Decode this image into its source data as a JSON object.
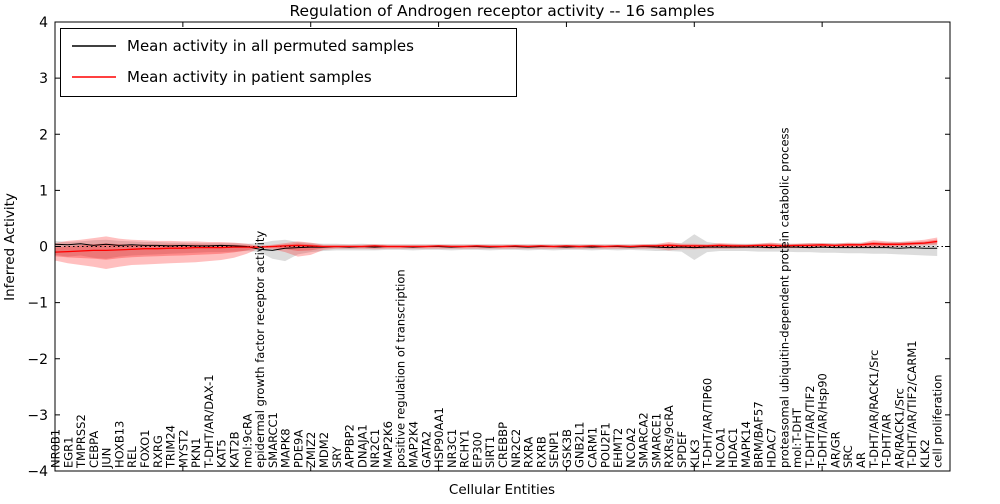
{
  "title": "Regulation of Androgen receptor activity -- 16 samples",
  "axes": {
    "xlabel": "Cellular Entities",
    "ylabel": "Inferred Activity",
    "xlim": [
      0,
      70
    ],
    "ylim": [
      -4,
      4
    ],
    "y_ticks": [
      {
        "label": "4",
        "value": 4
      },
      {
        "label": "3",
        "value": 3
      },
      {
        "label": "2",
        "value": 2
      },
      {
        "label": "1",
        "value": 1
      },
      {
        "label": "0",
        "value": 0
      },
      {
        "label": "−1",
        "value": -1
      },
      {
        "label": "−2",
        "value": -2
      },
      {
        "label": "−3",
        "value": -3
      },
      {
        "label": "−4",
        "value": -4
      }
    ],
    "x_tick_step": 10,
    "grid": false
  },
  "legend": {
    "position": "upper-left",
    "entries": [
      {
        "label": "Mean activity in all permuted samples",
        "color": "#000000"
      },
      {
        "label": "Mean activity in patient samples",
        "color": "#ff0000"
      }
    ]
  },
  "colors": {
    "permuted_line": "#000000",
    "patient_line": "#ff0000",
    "permuted_band": "#808080",
    "patient_band": "#ff0000",
    "zero_line": "#000000",
    "frame": "#000000",
    "background": "#ffffff"
  },
  "chart_data": {
    "type": "line",
    "title": "Regulation of Androgen receptor activity -- 16 samples",
    "xlabel": "Cellular Entities",
    "ylabel": "Inferred Activity",
    "ylim": [
      -4,
      4
    ],
    "xlim": [
      0,
      70
    ],
    "legend_position": "upper left",
    "categories": [
      "NR0B1",
      "EGR1",
      "TMPRSS2",
      "CEBPA",
      "JUN",
      "HOXB13",
      "REL",
      "FOXO1",
      "RXRG",
      "TRIM24",
      "MYST2",
      "PKN1",
      "T-DHT/AR/DAX-1",
      "KAT5",
      "KAT2B",
      "mol:9cRA",
      "epidermal growth factor receptor activity",
      "SMARCC1",
      "MAPK8",
      "PDE9A",
      "ZMIZ2",
      "MDM2",
      "SRY",
      "APPBP2",
      "DNAJA1",
      "NR2C1",
      "MAP2K6",
      "positive regulation of transcription",
      "MAP2K4",
      "GATA2",
      "HSP90AA1",
      "NR3C1",
      "RCHY1",
      "EP300",
      "SIRT1",
      "CREBBP",
      "NR2C2",
      "RXRA",
      "RXRB",
      "SENP1",
      "GSK3B",
      "GNB2L1",
      "CARM1",
      "POU2F1",
      "EHMT2",
      "NCOA2",
      "SMARCA2",
      "SMARCE1",
      "RXRs/9cRA",
      "SPDEF",
      "KLK3",
      "T-DHT/AR/TIP60",
      "NCOA1",
      "HDAC1",
      "MAPK14",
      "BRM/BAF57",
      "HDAC7",
      "proteasomal ubiquitin-dependent protein catabolic process",
      "mol:T-DHT",
      "T-DHT/AR/TIF2",
      "T-DHT/AR/Hsp90",
      "AR/GR",
      "SRC",
      "AR",
      "T-DHT/AR/RACK1/Src",
      "T-DHT/AR",
      "AR/RACK1/Src",
      "T-DHT/AR/TIF2/CARM1",
      "KLK2",
      "cell proliferation"
    ],
    "series": [
      {
        "name": "Mean activity in all permuted samples",
        "color": "#000000",
        "values": [
          0.04,
          0.03,
          0.05,
          0.02,
          0.04,
          0.02,
          0.03,
          0.02,
          0.02,
          0.01,
          0.02,
          0.01,
          0.01,
          0.02,
          0.01,
          0.0,
          -0.05,
          -0.07,
          -0.03,
          -0.02,
          -0.01,
          -0.01,
          0.0,
          -0.01,
          0.0,
          -0.01,
          0.0,
          0.0,
          -0.01,
          0.0,
          0.0,
          -0.01,
          0.0,
          0.0,
          -0.01,
          0.0,
          0.0,
          -0.01,
          0.0,
          0.0,
          -0.01,
          0.0,
          -0.01,
          0.0,
          0.0,
          -0.01,
          0.0,
          -0.01,
          -0.02,
          -0.01,
          -0.02,
          -0.01,
          -0.01,
          -0.01,
          -0.01,
          -0.01,
          -0.02,
          -0.01,
          -0.01,
          -0.02,
          -0.01,
          -0.02,
          -0.02,
          -0.02,
          -0.02,
          -0.02,
          -0.03,
          -0.02,
          -0.03,
          -0.03
        ]
      },
      {
        "name": "Mean activity in patient samples",
        "color": "#ff0000",
        "values": [
          -0.1,
          -0.09,
          -0.08,
          -0.07,
          -0.07,
          -0.06,
          -0.05,
          -0.04,
          -0.04,
          -0.03,
          -0.03,
          -0.02,
          -0.02,
          -0.02,
          -0.01,
          -0.01,
          -0.01,
          0.0,
          0.01,
          0.02,
          0.01,
          0.0,
          0.0,
          0.0,
          0.0,
          0.01,
          0.0,
          0.0,
          0.0,
          0.0,
          0.01,
          0.0,
          0.0,
          0.01,
          0.0,
          0.0,
          0.01,
          0.0,
          0.01,
          0.0,
          0.01,
          0.0,
          0.01,
          0.0,
          0.01,
          0.0,
          0.01,
          0.01,
          0.02,
          0.01,
          0.01,
          0.01,
          0.02,
          0.01,
          0.01,
          0.02,
          0.02,
          0.01,
          0.02,
          0.02,
          0.03,
          0.02,
          0.03,
          0.03,
          0.05,
          0.04,
          0.04,
          0.05,
          0.06,
          0.09
        ]
      }
    ],
    "bands": {
      "permuted_hi": [
        0.1,
        0.08,
        0.09,
        0.11,
        0.12,
        0.1,
        0.09,
        0.08,
        0.08,
        0.07,
        0.07,
        0.06,
        0.06,
        0.06,
        0.06,
        0.05,
        0.06,
        0.1,
        0.12,
        0.08,
        0.06,
        0.05,
        0.05,
        0.04,
        0.05,
        0.04,
        0.04,
        0.04,
        0.04,
        0.04,
        0.04,
        0.04,
        0.04,
        0.04,
        0.04,
        0.04,
        0.04,
        0.04,
        0.04,
        0.04,
        0.04,
        0.04,
        0.04,
        0.04,
        0.04,
        0.04,
        0.04,
        0.05,
        0.05,
        0.06,
        0.22,
        0.08,
        0.05,
        0.05,
        0.05,
        0.05,
        0.06,
        0.05,
        0.05,
        0.06,
        0.06,
        0.06,
        0.06,
        0.07,
        0.07,
        0.07,
        0.08,
        0.08,
        0.08,
        0.08
      ],
      "permuted_lo": [
        -0.15,
        -0.18,
        -0.16,
        -0.2,
        -0.22,
        -0.18,
        -0.16,
        -0.15,
        -0.14,
        -0.13,
        -0.12,
        -0.11,
        -0.1,
        -0.1,
        -0.09,
        -0.08,
        -0.1,
        -0.22,
        -0.26,
        -0.14,
        -0.1,
        -0.08,
        -0.07,
        -0.07,
        -0.07,
        -0.07,
        -0.06,
        -0.06,
        -0.07,
        -0.06,
        -0.06,
        -0.07,
        -0.06,
        -0.06,
        -0.07,
        -0.06,
        -0.06,
        -0.07,
        -0.06,
        -0.07,
        -0.06,
        -0.06,
        -0.07,
        -0.06,
        -0.07,
        -0.06,
        -0.07,
        -0.08,
        -0.08,
        -0.09,
        -0.24,
        -0.1,
        -0.08,
        -0.08,
        -0.08,
        -0.09,
        -0.09,
        -0.09,
        -0.1,
        -0.1,
        -0.11,
        -0.11,
        -0.12,
        -0.12,
        -0.13,
        -0.13,
        -0.14,
        -0.15,
        -0.16,
        -0.17
      ],
      "patient_hi": [
        0.06,
        0.1,
        0.12,
        0.15,
        0.18,
        0.14,
        0.12,
        0.11,
        0.1,
        0.1,
        0.09,
        0.09,
        0.08,
        0.08,
        0.07,
        0.05,
        0.01,
        0.03,
        0.06,
        0.09,
        0.07,
        0.03,
        0.03,
        0.03,
        0.03,
        0.04,
        0.03,
        0.03,
        0.03,
        0.03,
        0.03,
        0.03,
        0.03,
        0.03,
        0.03,
        0.03,
        0.03,
        0.03,
        0.03,
        0.03,
        0.03,
        0.03,
        0.03,
        0.03,
        0.03,
        0.03,
        0.04,
        0.04,
        0.08,
        0.05,
        0.05,
        0.04,
        0.06,
        0.05,
        0.04,
        0.05,
        0.07,
        0.05,
        0.05,
        0.06,
        0.06,
        0.05,
        0.07,
        0.06,
        0.11,
        0.09,
        0.08,
        0.1,
        0.12,
        0.16
      ],
      "patient_lo": [
        -0.25,
        -0.3,
        -0.33,
        -0.36,
        -0.4,
        -0.36,
        -0.33,
        -0.32,
        -0.31,
        -0.3,
        -0.29,
        -0.28,
        -0.26,
        -0.24,
        -0.2,
        -0.13,
        -0.03,
        -0.05,
        -0.1,
        -0.18,
        -0.15,
        -0.06,
        -0.04,
        -0.04,
        -0.04,
        -0.05,
        -0.04,
        -0.04,
        -0.04,
        -0.04,
        -0.04,
        -0.04,
        -0.04,
        -0.04,
        -0.04,
        -0.04,
        -0.04,
        -0.04,
        -0.04,
        -0.04,
        -0.04,
        -0.04,
        -0.04,
        -0.04,
        -0.04,
        -0.04,
        -0.04,
        -0.04,
        -0.07,
        -0.05,
        -0.05,
        -0.04,
        -0.04,
        -0.04,
        -0.03,
        -0.03,
        -0.04,
        -0.03,
        -0.03,
        -0.03,
        -0.02,
        -0.02,
        -0.02,
        -0.02,
        -0.02,
        -0.01,
        0.0,
        0.01,
        0.02,
        0.03
      ]
    }
  }
}
